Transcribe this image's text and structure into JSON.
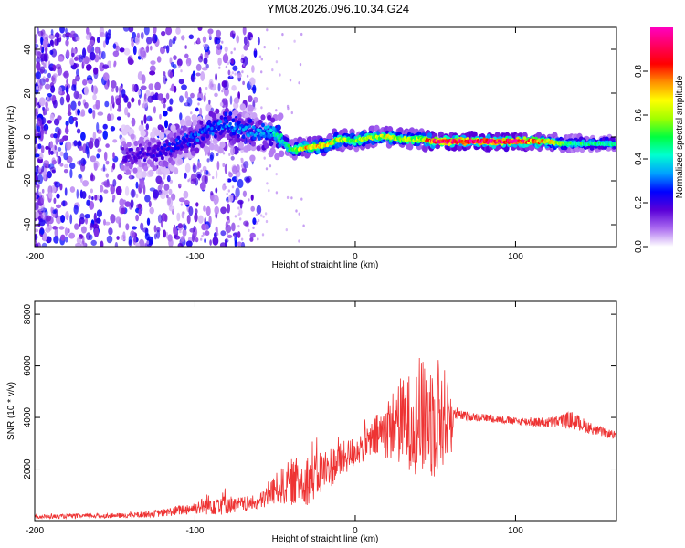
{
  "figure": {
    "title": "YM08.2026.096.10.34.G24"
  },
  "chart_data": [
    {
      "type": "heatmap",
      "name": "spectrogram",
      "xlabel": "Height of straight line (km)",
      "ylabel": "Frequency (Hz)",
      "xlim": [
        -200,
        163
      ],
      "ylim": [
        -50,
        50
      ],
      "xticks": [
        -200,
        -100,
        0,
        100
      ],
      "xticklabels": [
        "-200",
        "-100",
        "0",
        "100"
      ],
      "yticks": [
        -40,
        -20,
        0,
        20,
        40
      ],
      "yticklabels": [
        "-40",
        "-20",
        "0",
        "20",
        "40"
      ],
      "colorbar": {
        "label": "Normalized spectral amplitude",
        "range": [
          0,
          1
        ],
        "ticks": [
          0,
          0.2,
          0.4,
          0.6,
          0.8
        ],
        "ticklabels": [
          "0.0",
          "0.2",
          "0.4",
          "0.6",
          "0.8"
        ],
        "colormap": [
          "#ffffff",
          "#ab6cf0",
          "#5a00d8",
          "#0000ff",
          "#00a0ff",
          "#00ffd0",
          "#00ff40",
          "#a0ff00",
          "#ffff00",
          "#ff9000",
          "#ff0000",
          "#ff0060",
          "#ff00c0"
        ]
      },
      "ridge": [
        {
          "x": -140,
          "f": -8
        },
        {
          "x": -120,
          "f": -7
        },
        {
          "x": -110,
          "f": -3
        },
        {
          "x": -100,
          "f": 0
        },
        {
          "x": -90,
          "f": 4
        },
        {
          "x": -80,
          "f": 6
        },
        {
          "x": -70,
          "f": 3
        },
        {
          "x": -60,
          "f": 2
        },
        {
          "x": -50,
          "f": 2
        },
        {
          "x": -45,
          "f": -2
        },
        {
          "x": -40,
          "f": -6
        },
        {
          "x": -30,
          "f": -5
        },
        {
          "x": -20,
          "f": -4
        },
        {
          "x": -10,
          "f": -1
        },
        {
          "x": 0,
          "f": -2
        },
        {
          "x": 10,
          "f": 0
        },
        {
          "x": 20,
          "f": 0
        },
        {
          "x": 30,
          "f": -1
        },
        {
          "x": 40,
          "f": -1
        },
        {
          "x": 50,
          "f": -2
        },
        {
          "x": 60,
          "f": -2
        },
        {
          "x": 80,
          "f": -2
        },
        {
          "x": 100,
          "f": -2
        },
        {
          "x": 120,
          "f": -2
        },
        {
          "x": 130,
          "f": -3
        },
        {
          "x": 163,
          "f": -3
        }
      ],
      "intensity": [
        {
          "x": -200,
          "a": 0.15
        },
        {
          "x": -130,
          "a": 0.2
        },
        {
          "x": -100,
          "a": 0.3
        },
        {
          "x": -60,
          "a": 0.35
        },
        {
          "x": -40,
          "a": 0.5
        },
        {
          "x": -30,
          "a": 0.75
        },
        {
          "x": 0,
          "a": 0.6
        },
        {
          "x": 20,
          "a": 0.65
        },
        {
          "x": 40,
          "a": 0.6
        },
        {
          "x": 50,
          "a": 0.95
        },
        {
          "x": 100,
          "a": 0.97
        },
        {
          "x": 120,
          "a": 0.7
        },
        {
          "x": 135,
          "a": 0.5
        },
        {
          "x": 163,
          "a": 0.45
        }
      ]
    },
    {
      "type": "line",
      "name": "snr",
      "xlabel": "Height of straight line (km)",
      "ylabel": "SNR (10 * v/v)",
      "xlim": [
        -200,
        163
      ],
      "ylim": [
        0,
        8500
      ],
      "xticks": [
        -200,
        -100,
        0,
        100
      ],
      "xticklabels": [
        "-200",
        "-100",
        "0",
        "100"
      ],
      "yticks": [
        2000,
        4000,
        6000,
        8000
      ],
      "yticklabels": [
        "2000",
        "4000",
        "6000",
        "8000"
      ],
      "color": "#ee3333",
      "series": [
        {
          "name": "SNR",
          "envelope": [
            {
              "x": -200,
              "mid": 150,
              "amp": 80
            },
            {
              "x": -140,
              "mid": 200,
              "amp": 100
            },
            {
              "x": -120,
              "mid": 300,
              "amp": 150
            },
            {
              "x": -100,
              "mid": 500,
              "amp": 250
            },
            {
              "x": -85,
              "mid": 700,
              "amp": 500
            },
            {
              "x": -75,
              "mid": 600,
              "amp": 300
            },
            {
              "x": -60,
              "mid": 700,
              "amp": 300
            },
            {
              "x": -50,
              "mid": 1200,
              "amp": 600
            },
            {
              "x": -40,
              "mid": 1500,
              "amp": 900
            },
            {
              "x": -30,
              "mid": 1600,
              "amp": 1000
            },
            {
              "x": -20,
              "mid": 1900,
              "amp": 900
            },
            {
              "x": -10,
              "mid": 2300,
              "amp": 700
            },
            {
              "x": 0,
              "mid": 2700,
              "amp": 600
            },
            {
              "x": 10,
              "mid": 3100,
              "amp": 700
            },
            {
              "x": 20,
              "mid": 3600,
              "amp": 1200
            },
            {
              "x": 30,
              "mid": 3800,
              "amp": 1700
            },
            {
              "x": 40,
              "mid": 3900,
              "amp": 2200
            },
            {
              "x": 50,
              "mid": 4100,
              "amp": 2600
            },
            {
              "x": 60,
              "mid": 4000,
              "amp": 1400
            },
            {
              "x": 62,
              "mid": 4100,
              "amp": 200
            },
            {
              "x": 80,
              "mid": 4000,
              "amp": 150
            },
            {
              "x": 100,
              "mid": 3850,
              "amp": 150
            },
            {
              "x": 120,
              "mid": 3800,
              "amp": 200
            },
            {
              "x": 135,
              "mid": 3900,
              "amp": 350
            },
            {
              "x": 150,
              "mid": 3500,
              "amp": 200
            },
            {
              "x": 163,
              "mid": 3300,
              "amp": 150
            }
          ]
        }
      ]
    }
  ]
}
